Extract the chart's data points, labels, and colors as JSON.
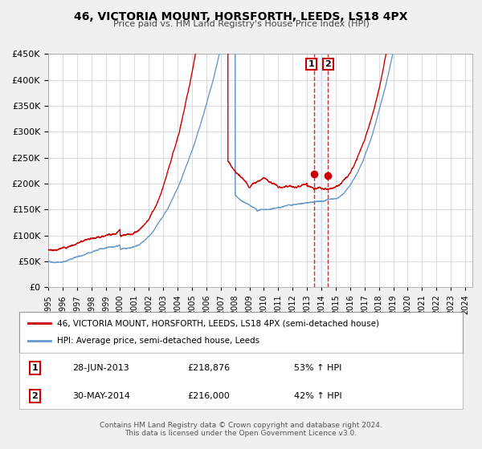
{
  "title": "46, VICTORIA MOUNT, HORSFORTH, LEEDS, LS18 4PX",
  "subtitle": "Price paid vs. HM Land Registry's House Price Index (HPI)",
  "legend_line1": "46, VICTORIA MOUNT, HORSFORTH, LEEDS, LS18 4PX (semi-detached house)",
  "legend_line2": "HPI: Average price, semi-detached house, Leeds",
  "table_row1": [
    "1",
    "28-JUN-2013",
    "£218,876",
    "53% ↑ HPI"
  ],
  "table_row2": [
    "2",
    "30-MAY-2014",
    "£216,000",
    "42% ↑ HPI"
  ],
  "footnote1": "Contains HM Land Registry data © Crown copyright and database right 2024.",
  "footnote2": "This data is licensed under the Open Government Licence v3.0.",
  "red_color": "#cc0000",
  "blue_color": "#6699cc",
  "grid_color": "#dddddd",
  "background_color": "#f5f5f5",
  "plot_background": "#ffffff",
  "vline1_x": 2013.5,
  "vline2_x": 2014.42,
  "point1_x": 2013.5,
  "point1_y": 218876,
  "point2_x": 2014.42,
  "point2_y": 216000,
  "ylim": [
    0,
    450000
  ],
  "xlim_start": 1995,
  "xlim_end": 2024.5,
  "yticks": [
    0,
    50000,
    100000,
    150000,
    200000,
    250000,
    300000,
    350000,
    400000,
    450000
  ],
  "xticks": [
    1995,
    1996,
    1997,
    1998,
    1999,
    2000,
    2001,
    2002,
    2003,
    2004,
    2005,
    2006,
    2007,
    2008,
    2009,
    2010,
    2011,
    2012,
    2013,
    2014,
    2015,
    2016,
    2017,
    2018,
    2019,
    2020,
    2021,
    2022,
    2023,
    2024
  ]
}
